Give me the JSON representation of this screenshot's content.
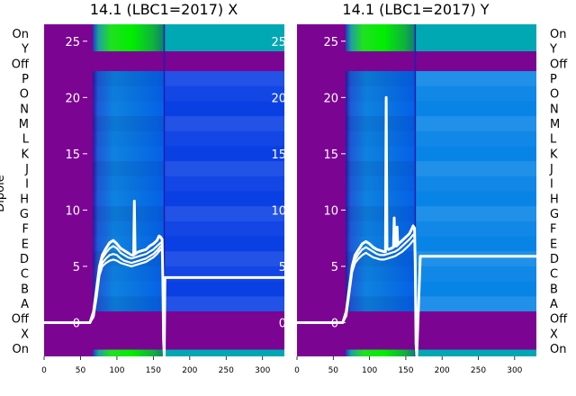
{
  "figure": {
    "colors": {
      "background": "#ffffff",
      "dipole_off": "#7b0493",
      "dipole_on_plane": "#00a8b4",
      "trace": "#ffffff",
      "marker_line": "#1f1fa8"
    }
  },
  "chart_data": [
    {
      "type": "heatmap",
      "title": "14.1 (LBC1=2017) X",
      "xlabel": "",
      "ylabel": "Dipole",
      "xlim": [
        0,
        330
      ],
      "xticks": [
        "0",
        "50",
        "100",
        "150",
        "200",
        "250",
        "300"
      ],
      "ylim": [
        -3,
        26.5
      ],
      "yticks": [
        "0",
        "5",
        "10",
        "15",
        "20",
        "25"
      ],
      "dipole_labels": [
        "On",
        "Y",
        "Off",
        "P",
        "O",
        "N",
        "M",
        "L",
        "K",
        "J",
        "I",
        "H",
        "G",
        "F",
        "E",
        "D",
        "C",
        "B",
        "A",
        "Off",
        "X",
        "On"
      ],
      "marker_x": 165,
      "series": [
        {
          "x": [
            0,
            50,
            63,
            68,
            72,
            76,
            80,
            85,
            90,
            95,
            100,
            105,
            110,
            115,
            120,
            123,
            124,
            125,
            127,
            130,
            135,
            140,
            145,
            150,
            155,
            158,
            160,
            162,
            163,
            164,
            165,
            166,
            170,
            200,
            250,
            330
          ],
          "y": [
            0,
            0,
            0,
            1,
            3,
            5,
            6,
            6.6,
            7.1,
            7.3,
            7,
            6.6,
            6.4,
            6.2,
            6,
            6,
            10.8,
            6.1,
            6.2,
            6.3,
            6.4,
            6.5,
            6.8,
            7,
            7.3,
            7.7,
            7.6,
            7.4,
            4,
            -1.5,
            -3,
            4,
            4,
            4,
            4,
            4
          ]
        },
        {
          "x": [
            0,
            50,
            63,
            68,
            72,
            76,
            80,
            85,
            90,
            95,
            100,
            105,
            110,
            115,
            120,
            125,
            130,
            135,
            140,
            145,
            150,
            155,
            160,
            163
          ],
          "y": [
            0,
            0,
            0,
            0.8,
            2.8,
            4.8,
            5.7,
            6.2,
            6.6,
            6.8,
            6.6,
            6.2,
            6,
            5.8,
            5.7,
            5.8,
            5.9,
            6,
            6.1,
            6.3,
            6.5,
            6.8,
            7.1,
            7
          ]
        },
        {
          "x": [
            0,
            50,
            63,
            68,
            72,
            76,
            80,
            85,
            90,
            95,
            100,
            105,
            110,
            115,
            120,
            125,
            130,
            135,
            140,
            145,
            150,
            155,
            160,
            163
          ],
          "y": [
            0,
            0,
            0,
            0.6,
            2.5,
            4.5,
            5.3,
            5.7,
            6,
            6.1,
            6,
            5.7,
            5.5,
            5.4,
            5.3,
            5.4,
            5.5,
            5.6,
            5.7,
            5.9,
            6.1,
            6.4,
            6.8,
            6.7
          ]
        },
        {
          "x": [
            0,
            50,
            63,
            68,
            72,
            76,
            80,
            85,
            90,
            95,
            100,
            105,
            110,
            115,
            120,
            125,
            130,
            135,
            140,
            145,
            150,
            155,
            160,
            163
          ],
          "y": [
            0,
            0,
            0,
            0.5,
            2.2,
            4.2,
            5,
            5.3,
            5.5,
            5.6,
            5.5,
            5.3,
            5.2,
            5.1,
            5,
            5.1,
            5.2,
            5.3,
            5.4,
            5.6,
            5.8,
            6.1,
            6.5,
            6.4
          ]
        }
      ]
    },
    {
      "type": "heatmap",
      "title": "14.1 (LBC1=2017) Y",
      "xlabel": "",
      "ylabel": "",
      "xlim": [
        0,
        330
      ],
      "xticks": [
        "0",
        "50",
        "100",
        "150",
        "200",
        "250",
        "300"
      ],
      "ylim": [
        -3,
        26.5
      ],
      "yticks": [
        "0",
        "5",
        "10",
        "15",
        "20",
        "25"
      ],
      "dipole_labels": [
        "On",
        "Y",
        "Off",
        "P",
        "O",
        "N",
        "M",
        "L",
        "K",
        "J",
        "I",
        "H",
        "G",
        "F",
        "E",
        "D",
        "C",
        "B",
        "A",
        "Off",
        "X",
        "On"
      ],
      "marker_x": 163,
      "series": [
        {
          "x": [
            0,
            50,
            63,
            68,
            72,
            76,
            80,
            85,
            90,
            95,
            100,
            105,
            110,
            115,
            120,
            122,
            123,
            124,
            126,
            130,
            133,
            134,
            135,
            137,
            138,
            139,
            140,
            145,
            150,
            155,
            158,
            160,
            162,
            163,
            164,
            165,
            170,
            200,
            250,
            330
          ],
          "y": [
            0,
            0,
            0,
            1,
            3,
            5,
            6,
            6.5,
            7,
            7.2,
            7,
            6.7,
            6.5,
            6.4,
            6.3,
            6.3,
            20,
            6.6,
            6.5,
            6.6,
            6.7,
            9.3,
            6.8,
            6.8,
            8.5,
            6.9,
            7,
            7.3,
            7.6,
            7.9,
            8.3,
            8.6,
            8.4,
            5,
            -1.8,
            -3,
            5.9,
            5.9,
            5.9,
            5.9
          ]
        },
        {
          "x": [
            0,
            50,
            63,
            68,
            72,
            76,
            80,
            85,
            90,
            95,
            100,
            105,
            110,
            115,
            120,
            125,
            130,
            135,
            140,
            145,
            150,
            155,
            160,
            163
          ],
          "y": [
            0,
            0,
            0,
            0.8,
            2.8,
            4.8,
            5.6,
            6.1,
            6.5,
            6.7,
            6.5,
            6.3,
            6.1,
            6,
            6,
            6.1,
            6.2,
            6.3,
            6.5,
            6.8,
            7.1,
            7.4,
            7.8,
            7.6
          ]
        },
        {
          "x": [
            0,
            50,
            63,
            68,
            72,
            76,
            80,
            85,
            90,
            95,
            100,
            105,
            110,
            115,
            120,
            125,
            130,
            135,
            140,
            145,
            150,
            155,
            160,
            163
          ],
          "y": [
            0,
            0,
            0,
            0.6,
            2.5,
            4.5,
            5.3,
            5.7,
            6,
            6.2,
            6,
            5.8,
            5.7,
            5.6,
            5.6,
            5.7,
            5.8,
            5.9,
            6.1,
            6.3,
            6.6,
            6.9,
            7.3,
            7.1
          ]
        }
      ]
    }
  ]
}
